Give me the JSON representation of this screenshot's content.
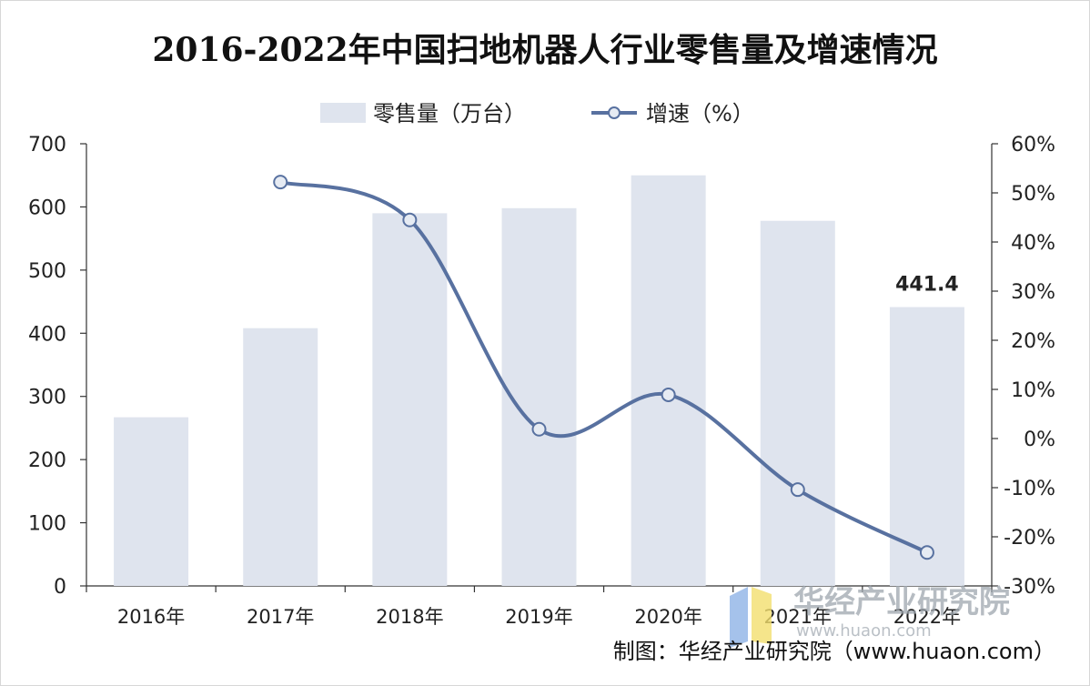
{
  "chart_data": {
    "type": "bar",
    "title": "2016-2022年中国扫地机器人行业零售量及增速情况",
    "categories": [
      "2016年",
      "2017年",
      "2018年",
      "2019年",
      "2020年",
      "2021年",
      "2022年"
    ],
    "series": [
      {
        "name": "零售量（万台）",
        "type": "bar",
        "axis": "left",
        "values": [
          267,
          408,
          590,
          598,
          650,
          578,
          441.4
        ],
        "color": "#dfe4ee"
      },
      {
        "name": "增速（%）",
        "type": "line",
        "axis": "right",
        "values": [
          null,
          52.2,
          44.5,
          1.9,
          8.9,
          -10.4,
          -23.2
        ],
        "color": "#5871a0"
      }
    ],
    "y_left": {
      "min": 0,
      "max": 700,
      "ticks": [
        "0",
        "100",
        "200",
        "300",
        "400",
        "500",
        "600",
        "700"
      ]
    },
    "y_right": {
      "min": -30,
      "max": 60,
      "ticks": [
        "-30%",
        "-20%",
        "-10%",
        "0%",
        "10%",
        "20%",
        "30%",
        "40%",
        "50%",
        "60%"
      ]
    },
    "data_labels": [
      {
        "category": "2022年",
        "text": "441.4"
      }
    ],
    "legend_position": "top-center",
    "grid": false
  },
  "source": "制图：华经产业研究院（www.huaon.com）",
  "watermark": {
    "name": "华经产业研究院",
    "url": "www.huaon.com"
  }
}
